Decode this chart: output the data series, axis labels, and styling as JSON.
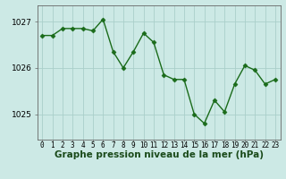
{
  "x": [
    0,
    1,
    2,
    3,
    4,
    5,
    6,
    7,
    8,
    9,
    10,
    11,
    12,
    13,
    14,
    15,
    16,
    17,
    18,
    19,
    20,
    21,
    22,
    23
  ],
  "y": [
    1026.7,
    1026.7,
    1026.85,
    1026.85,
    1026.85,
    1026.8,
    1027.05,
    1026.35,
    1026.0,
    1026.35,
    1026.75,
    1026.55,
    1025.85,
    1025.75,
    1025.75,
    1025.0,
    1024.8,
    1025.3,
    1025.05,
    1025.65,
    1026.05,
    1025.95,
    1025.65,
    1025.75
  ],
  "line_color": "#1a6b1a",
  "marker": "D",
  "markersize": 2.5,
  "linewidth": 1.0,
  "bg_color": "#cce9e5",
  "grid_color": "#aacfca",
  "xlabel": "Graphe pression niveau de la mer (hPa)",
  "xlabel_fontsize": 7.5,
  "ylabel_ticks": [
    1025,
    1026,
    1027
  ],
  "ylim": [
    1024.45,
    1027.35
  ],
  "xlim": [
    -0.5,
    23.5
  ],
  "xtick_labels": [
    "0",
    "1",
    "2",
    "3",
    "4",
    "5",
    "6",
    "7",
    "8",
    "9",
    "10",
    "11",
    "12",
    "13",
    "14",
    "15",
    "16",
    "17",
    "18",
    "19",
    "20",
    "21",
    "22",
    "23"
  ],
  "tick_fontsize": 5.5,
  "ytick_fontsize": 6.5,
  "axis_color": "#666666"
}
